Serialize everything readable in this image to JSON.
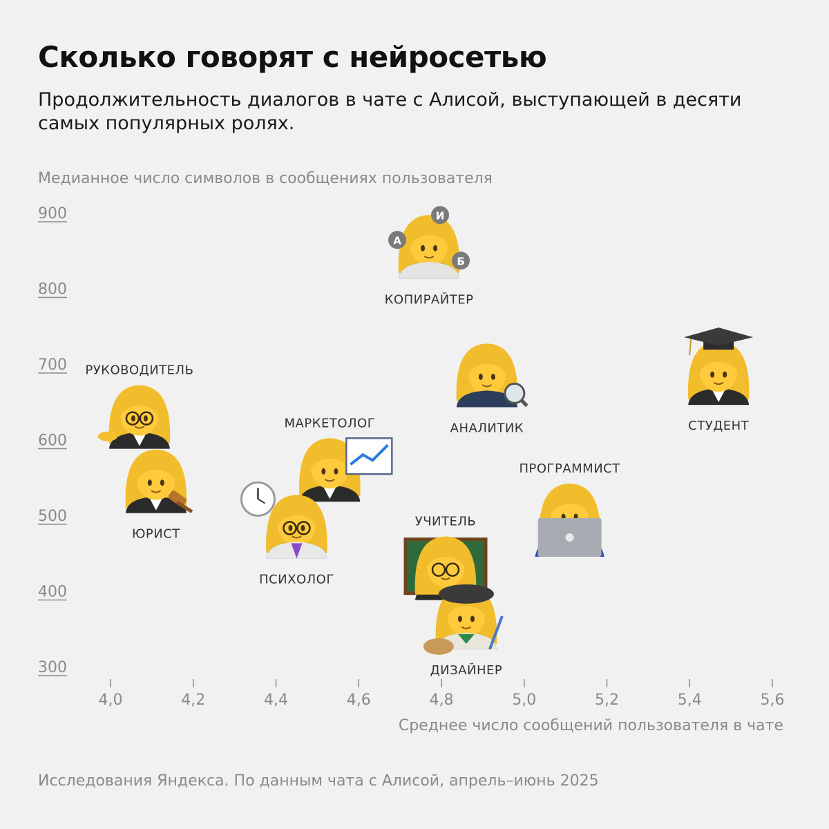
{
  "header": {
    "title": "Сколько говорят с нейросетью",
    "subtitle": "Продолжительность диалогов в чате с Алисой, выступающей в десяти самых популярных ролях."
  },
  "footer": {
    "source": "Исследования Яндекса. По данным чата с Алисой, апрель–июнь 2025"
  },
  "colors": {
    "background": "#f1f1f1",
    "hair": "#f2bd2c",
    "face": "#ffcb3c",
    "muted_text": "#8a8a8a"
  },
  "chart_data": {
    "type": "scatter",
    "ylabel": "Медианное число символов в сообщениях пользователя",
    "xlabel": "Среднее число сообщений пользователя в чате",
    "xlim": [
      4.0,
      5.6
    ],
    "ylim": [
      300,
      900
    ],
    "xticks": [
      "4,0",
      "4,2",
      "4,4",
      "4,6",
      "4,8",
      "5,0",
      "5,2",
      "5,4",
      "5,6"
    ],
    "yticks": [
      "300",
      "400",
      "500",
      "600",
      "700",
      "800",
      "900"
    ],
    "grid": false,
    "points": [
      {
        "label": "КОПИРАЙТЕР",
        "icon": "woman-juggler-icon",
        "x": 4.77,
        "y": 855,
        "label_pos": "below"
      },
      {
        "label": "СТУДЕНТ",
        "icon": "woman-student-icon",
        "x": 5.47,
        "y": 688,
        "label_pos": "below"
      },
      {
        "label": "АНАЛИТИК",
        "icon": "woman-detective-icon",
        "x": 4.91,
        "y": 685,
        "label_pos": "below"
      },
      {
        "label": "РУКОВОДИТЕЛЬ",
        "icon": "woman-office-worker-icon",
        "x": 4.07,
        "y": 630,
        "label_pos": "above"
      },
      {
        "label": "МАРКЕТОЛОГ",
        "icon": "woman-marketer-icon",
        "x": 4.53,
        "y": 560,
        "label_pos": "above"
      },
      {
        "label": "ЮРИСТ",
        "icon": "woman-judge-icon",
        "x": 4.11,
        "y": 545,
        "label_pos": "below"
      },
      {
        "label": "ПРОГРАММИСТ",
        "icon": "woman-technologist-icon",
        "x": 5.11,
        "y": 500,
        "label_pos": "above"
      },
      {
        "label": "ПСИХОЛОГ",
        "icon": "woman-health-worker-icon",
        "x": 4.45,
        "y": 485,
        "label_pos": "below"
      },
      {
        "label": "УЧИТЕЛЬ",
        "icon": "woman-teacher-icon",
        "x": 4.81,
        "y": 430,
        "label_pos": "above"
      },
      {
        "label": "ДИЗАЙНЕР",
        "icon": "woman-artist-icon",
        "x": 4.86,
        "y": 365,
        "label_pos": "below"
      }
    ]
  }
}
